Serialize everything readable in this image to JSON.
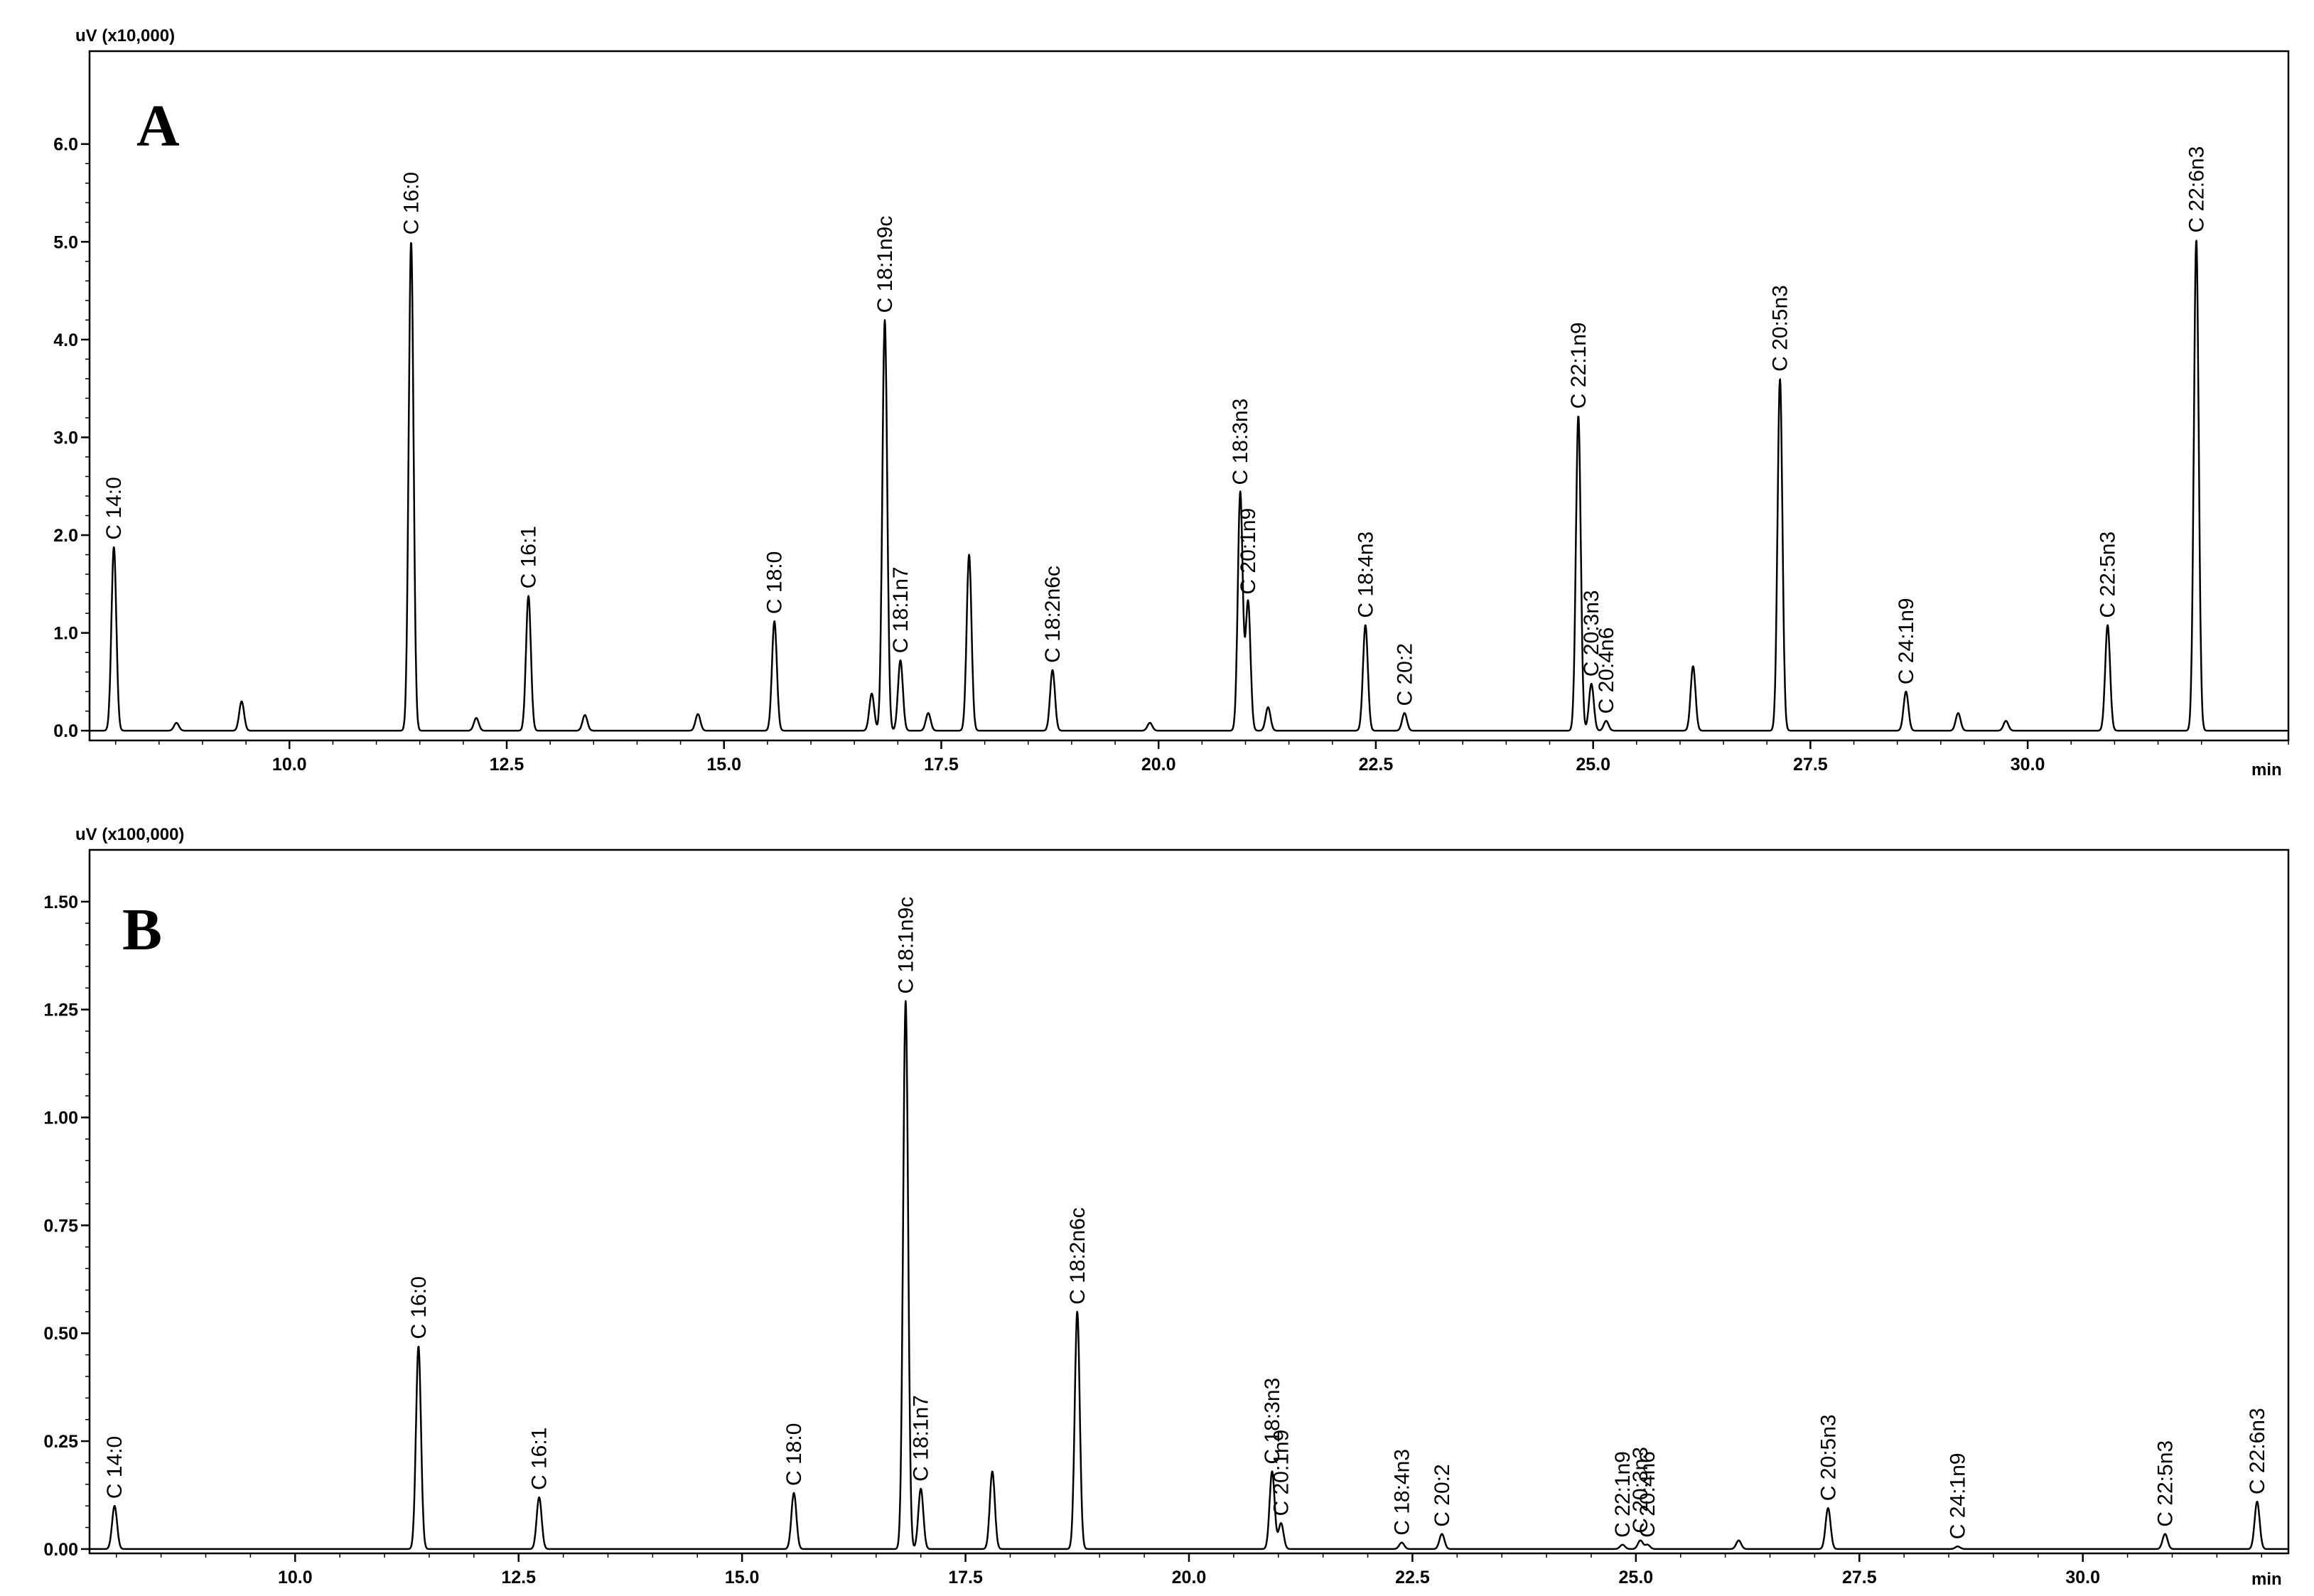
{
  "chart_data": [
    {
      "type": "line",
      "panel": "A",
      "ylabel": "uV (x10,000)",
      "xlabel": "min",
      "xlim": [
        7.7,
        33.0
      ],
      "ylim": [
        -0.1,
        6.95
      ],
      "xticks": [
        10.0,
        12.5,
        15.0,
        17.5,
        20.0,
        22.5,
        25.0,
        27.5,
        30.0
      ],
      "yticks": [
        0.0,
        1.0,
        2.0,
        3.0,
        4.0,
        5.0,
        6.0
      ],
      "grid": false,
      "baseline": 0.0,
      "peaks": [
        {
          "x": 7.98,
          "y": 1.88,
          "label": "C 14:0"
        },
        {
          "x": 8.7,
          "y": 0.08
        },
        {
          "x": 9.45,
          "y": 0.3
        },
        {
          "x": 11.4,
          "y": 5.0,
          "label": "C 16:0"
        },
        {
          "x": 12.15,
          "y": 0.13
        },
        {
          "x": 12.75,
          "y": 1.38,
          "label": "C 16:1"
        },
        {
          "x": 13.4,
          "y": 0.16
        },
        {
          "x": 14.7,
          "y": 0.17
        },
        {
          "x": 15.58,
          "y": 1.12,
          "label": "C 18:0"
        },
        {
          "x": 16.7,
          "y": 0.38
        },
        {
          "x": 16.85,
          "y": 4.2,
          "label": "C 18:1n9c"
        },
        {
          "x": 17.03,
          "y": 0.72,
          "label": "C 18:1n7"
        },
        {
          "x": 17.35,
          "y": 0.18
        },
        {
          "x": 17.82,
          "y": 1.8
        },
        {
          "x": 18.78,
          "y": 0.62,
          "label": "C 18:2n6c"
        },
        {
          "x": 19.9,
          "y": 0.08
        },
        {
          "x": 20.94,
          "y": 2.44,
          "label": "C 18:3n3"
        },
        {
          "x": 21.03,
          "y": 1.32,
          "label": "C 20:1n9"
        },
        {
          "x": 21.26,
          "y": 0.24
        },
        {
          "x": 22.38,
          "y": 1.08,
          "label": "C 18:4n3"
        },
        {
          "x": 22.83,
          "y": 0.18,
          "label": "C 20:2"
        },
        {
          "x": 24.83,
          "y": 3.22,
          "label": "C 22:1n9"
        },
        {
          "x": 24.98,
          "y": 0.48,
          "label": "C 20:3n3"
        },
        {
          "x": 25.15,
          "y": 0.1,
          "label": "C 20:4n6"
        },
        {
          "x": 26.15,
          "y": 0.66
        },
        {
          "x": 27.15,
          "y": 3.6,
          "label": "C 20:5n3"
        },
        {
          "x": 28.6,
          "y": 0.4,
          "label": "C 24:1n9"
        },
        {
          "x": 29.2,
          "y": 0.18
        },
        {
          "x": 29.75,
          "y": 0.1
        },
        {
          "x": 30.92,
          "y": 1.08,
          "label": "C 22:5n3"
        },
        {
          "x": 31.94,
          "y": 5.02,
          "label": "C 22:6n3"
        }
      ]
    },
    {
      "type": "line",
      "panel": "B",
      "ylabel": "uV (x100,000)",
      "xlabel": "min",
      "xlim": [
        7.7,
        32.3
      ],
      "ylim": [
        -0.01,
        1.62
      ],
      "xticks": [
        10.0,
        12.5,
        15.0,
        17.5,
        20.0,
        22.5,
        25.0,
        27.5,
        30.0
      ],
      "yticks": [
        0.0,
        0.25,
        0.5,
        0.75,
        1.0,
        1.25,
        1.5
      ],
      "grid": false,
      "baseline": 0.0,
      "peaks": [
        {
          "x": 7.98,
          "y": 0.1,
          "label": "C 14:0"
        },
        {
          "x": 11.38,
          "y": 0.47,
          "label": "C 16:0"
        },
        {
          "x": 12.73,
          "y": 0.12,
          "label": "C 16:1"
        },
        {
          "x": 15.58,
          "y": 0.13,
          "label": "C 18:0"
        },
        {
          "x": 16.83,
          "y": 1.27,
          "label": "C 18:1n9c"
        },
        {
          "x": 17.0,
          "y": 0.14,
          "label": "C 18:1n7"
        },
        {
          "x": 17.8,
          "y": 0.18
        },
        {
          "x": 18.75,
          "y": 0.55,
          "label": "C 18:2n6c"
        },
        {
          "x": 20.93,
          "y": 0.18,
          "label": "C 18:3n3"
        },
        {
          "x": 21.03,
          "y": 0.06,
          "label": "C 20:1n9"
        },
        {
          "x": 22.38,
          "y": 0.015,
          "label": "C 18:4n3"
        },
        {
          "x": 22.83,
          "y": 0.035,
          "label": "C 20:2"
        },
        {
          "x": 24.85,
          "y": 0.01,
          "label": "C 22:1n9"
        },
        {
          "x": 25.05,
          "y": 0.02,
          "label": "C 20:3n3"
        },
        {
          "x": 25.13,
          "y": 0.01,
          "label": "C 20:4n6"
        },
        {
          "x": 26.15,
          "y": 0.02
        },
        {
          "x": 27.15,
          "y": 0.095,
          "label": "C 20:5n3"
        },
        {
          "x": 28.6,
          "y": 0.006,
          "label": "C 24:1n9"
        },
        {
          "x": 30.92,
          "y": 0.035,
          "label": "C 22:5n3"
        },
        {
          "x": 31.95,
          "y": 0.11,
          "label": "C 22:6n3"
        }
      ]
    }
  ]
}
